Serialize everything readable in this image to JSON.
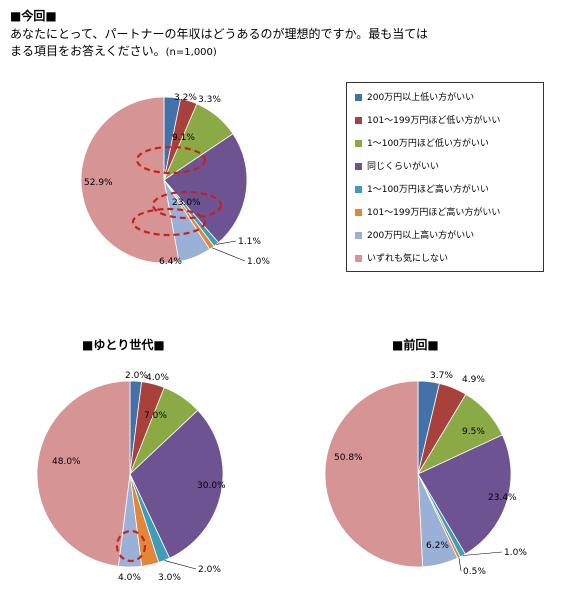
{
  "header": {
    "title": "■今回■",
    "line1": "あなたにとって、パートナーの年収はどうあるのが理想的ですか。最も当ては",
    "line2": "まる項目をお答えください。",
    "n": "(n=1,000)"
  },
  "legend": [
    {
      "label": "200万円以上低い方がいい",
      "color": "#4472A8"
    },
    {
      "label": "101～199万円ほど低い方がいい",
      "color": "#A8403C"
    },
    {
      "label": "1～100万円ほど低い方がいい",
      "color": "#8BAA46"
    },
    {
      "label": "同じくらいがいい",
      "color": "#6D5391"
    },
    {
      "label": "1～100万円ほど高い方がいい",
      "color": "#3E9DB8"
    },
    {
      "label": "101～199万円ほど高い方がいい",
      "color": "#E0873A"
    },
    {
      "label": "200万円以上高い方がいい",
      "color": "#9AB0D6"
    },
    {
      "label": "いずれも気にしない",
      "color": "#D69495"
    }
  ],
  "chart_data": [
    {
      "type": "pie",
      "title": "■今回■",
      "categories": [
        "200万円以上低い方がいい",
        "101～199万円ほど低い方がいい",
        "1～100万円ほど低い方がいい",
        "同じくらいがいい",
        "1～100万円ほど高い方がいい",
        "101～199万円ほど高い方がいい",
        "200万円以上高い方がいい",
        "いずれも気にしない"
      ],
      "values": [
        3.2,
        3.3,
        9.1,
        23.0,
        1.1,
        1.0,
        6.4,
        52.9
      ],
      "labels": [
        "3.2%",
        "3.3%",
        "9.1%",
        "23.0%",
        "1.1%",
        "1.0%",
        "6.4%",
        "52.9%"
      ],
      "highlighted": [
        "9.1%",
        "23.0%",
        "52.9%"
      ]
    },
    {
      "type": "pie",
      "title": "■ゆとり世代■",
      "categories": [
        "200万円以上低い方がいい",
        "101～199万円ほど低い方がいい",
        "1～100万円ほど低い方がいい",
        "同じくらいがいい",
        "1～100万円ほど高い方がいい",
        "101～199万円ほど高い方がいい",
        "200万円以上高い方がいい",
        "いずれも気にしない"
      ],
      "values": [
        2.0,
        4.0,
        7.0,
        30.0,
        2.0,
        3.0,
        4.0,
        48.0
      ],
      "labels": [
        "2.0%",
        "4.0%",
        "7.0%",
        "30.0%",
        "2.0%",
        "3.0%",
        "4.0%",
        "48.0%"
      ],
      "highlighted": [
        "30.0%"
      ]
    },
    {
      "type": "pie",
      "title": "■前回■",
      "categories": [
        "200万円以上低い方がいい",
        "101～199万円ほど低い方がいい",
        "1～100万円ほど低い方がいい",
        "同じくらいがいい",
        "1～100万円ほど高い方がいい",
        "101～199万円ほど高い方がいい",
        "200万円以上高い方がいい",
        "いずれも気にしない"
      ],
      "values": [
        3.7,
        4.9,
        9.5,
        23.4,
        1.0,
        0.5,
        6.2,
        50.8
      ],
      "labels": [
        "3.7%",
        "4.9%",
        "9.5%",
        "23.4%",
        "1.0%",
        "0.5%",
        "6.2%",
        "50.8%"
      ],
      "highlighted": []
    }
  ]
}
